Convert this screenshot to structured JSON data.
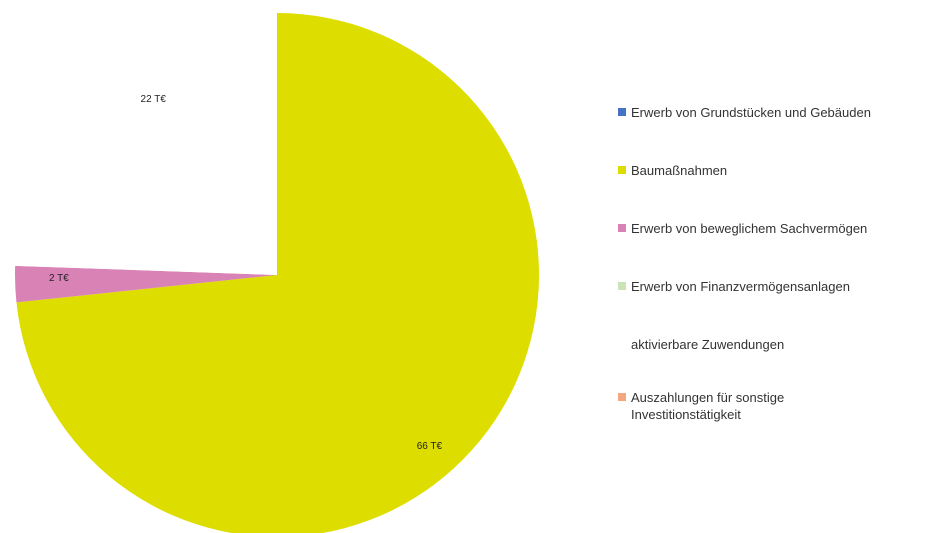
{
  "chart_data": {
    "type": "pie",
    "title": "",
    "start_angle_deg": 0,
    "direction": "clockwise",
    "slices": [
      {
        "name": "Erwerb von Grundstücken und Gebäuden",
        "value": 0,
        "color": "#4472c4",
        "label": ""
      },
      {
        "name": "Baumaßnahmen",
        "value": 66,
        "color": "#dddd00",
        "label": "66 T€"
      },
      {
        "name": "Erwerb von beweglichem Sachvermögen",
        "value": 2,
        "color": "#d982b5",
        "label": "2 T€"
      },
      {
        "name": "Erwerb von Finanzvermögensanlagen",
        "value": 0,
        "color": "#c9e5b5",
        "label": ""
      },
      {
        "name": "aktivierbare Zuwendungen",
        "value": 22,
        "color": "#ffffff",
        "label": "22 T€"
      },
      {
        "name": "Auszahlungen für sonstige Investitionstätigkeit",
        "value": 0,
        "color": "#f4a582",
        "label": ""
      }
    ],
    "legend": {
      "position": "right",
      "entries": [
        {
          "label_lines": [
            "Erwerb von Grundstücken und Gebäuden"
          ],
          "color": "#4472c4",
          "swatch": true
        },
        {
          "label_lines": [
            "Baumaßnahmen"
          ],
          "color": "#dddd00",
          "swatch": true
        },
        {
          "label_lines": [
            "Erwerb von beweglichem Sachvermögen"
          ],
          "color": "#d982b5",
          "swatch": true
        },
        {
          "label_lines": [
            "Erwerb von Finanzvermögensanlagen"
          ],
          "color": "#c9e5b5",
          "swatch": true
        },
        {
          "label_lines": [
            "aktivierbare Zuwendungen"
          ],
          "color": "#ffffff",
          "swatch": false
        },
        {
          "label_lines": [
            "Auszahlungen für sonstige",
            "Investitionstätigkeit"
          ],
          "color": "#f4a582",
          "swatch": true
        }
      ]
    }
  }
}
